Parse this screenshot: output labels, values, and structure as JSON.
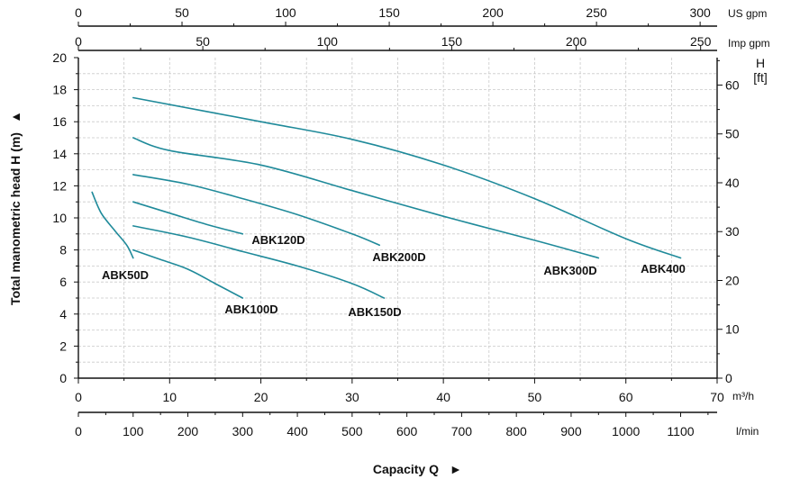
{
  "chart_data": {
    "type": "line",
    "ylabel": "Total manometric head H (m)",
    "xlabel": "Capacity Q",
    "xlim": [
      0,
      70
    ],
    "ylim": [
      0,
      20
    ],
    "grid": true,
    "colors": {
      "curve": "#1f8a9a",
      "axis": "#111111",
      "grid": "#c9c9c9"
    },
    "axes": {
      "x_m3h": {
        "unit": "m³/h",
        "ticks": [
          "0",
          "10",
          "20",
          "30",
          "40",
          "50",
          "60",
          "70"
        ]
      },
      "x_lmin": {
        "unit": "l/min",
        "ticks": [
          "0",
          "100",
          "200",
          "300",
          "400",
          "500",
          "600",
          "700",
          "800",
          "900",
          "1000",
          "1100"
        ]
      },
      "x_usgpm": {
        "unit": "US gpm",
        "ticks": [
          "0",
          "50",
          "100",
          "150",
          "200",
          "250",
          "300"
        ]
      },
      "x_impgpm": {
        "unit": "Imp gpm",
        "ticks": [
          "0",
          "50",
          "100",
          "150",
          "200",
          "250"
        ]
      },
      "y_m": {
        "ticks": [
          "0",
          "2",
          "4",
          "6",
          "8",
          "10",
          "12",
          "14",
          "16",
          "18",
          "20"
        ]
      },
      "y_ft": {
        "unit_line1": "H",
        "unit_line2": "[ft]",
        "ticks": [
          "0",
          "10",
          "20",
          "30",
          "40",
          "50",
          "60"
        ]
      }
    },
    "series": [
      {
        "name": "ABK50D",
        "x": [
          1.5,
          2.5,
          4,
          5.3,
          6
        ],
        "y": [
          11.6,
          10.3,
          9.2,
          8.3,
          7.5
        ]
      },
      {
        "name": "ABK100D",
        "x": [
          6,
          9,
          12,
          15,
          18
        ],
        "y": [
          8.0,
          7.4,
          6.8,
          5.9,
          5.0
        ]
      },
      {
        "name": "ABK120D",
        "x": [
          6,
          10,
          14,
          18
        ],
        "y": [
          11.0,
          10.3,
          9.6,
          9.0
        ]
      },
      {
        "name": "ABK150D",
        "x": [
          6,
          12,
          18,
          24,
          30,
          33.5
        ],
        "y": [
          9.5,
          8.8,
          7.9,
          7.0,
          5.9,
          5.0
        ]
      },
      {
        "name": "ABK200D",
        "x": [
          6,
          12,
          18,
          24,
          30,
          33
        ],
        "y": [
          12.7,
          12.1,
          11.2,
          10.2,
          9.0,
          8.3
        ]
      },
      {
        "name": "ABK300D",
        "x": [
          6,
          10,
          20,
          30,
          40,
          50,
          57
        ],
        "y": [
          15.0,
          14.2,
          13.3,
          11.7,
          10.1,
          8.6,
          7.5
        ]
      },
      {
        "name": "ABK400",
        "x": [
          6,
          20,
          30,
          40,
          50,
          60,
          66
        ],
        "y": [
          17.5,
          16.0,
          14.9,
          13.3,
          11.2,
          8.7,
          7.5
        ]
      }
    ]
  }
}
